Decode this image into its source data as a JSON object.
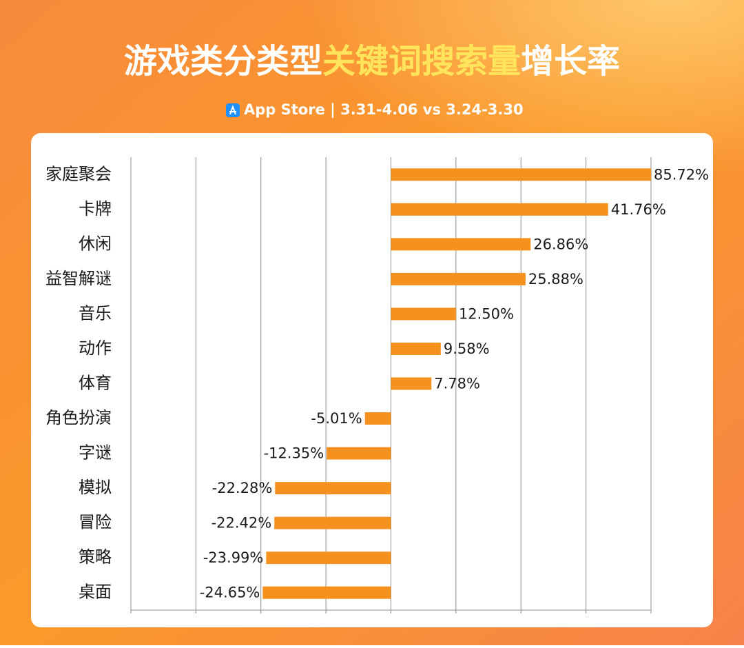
{
  "chart_data": {
    "type": "bar",
    "orientation": "horizontal",
    "title": [
      "游戏类分类型",
      "关键词搜索量",
      "增长率"
    ],
    "subtitle": "App Store | 3.31-4.06 vs 3.24-3.30",
    "categories": [
      "家庭聚会",
      "卡牌",
      "休闲",
      "益智解谜",
      "音乐",
      "动作",
      "体育",
      "角色扮演",
      "字谜",
      "模拟",
      "冒险",
      "策略",
      "桌面"
    ],
    "values": [
      85.72,
      41.76,
      26.86,
      25.88,
      12.5,
      9.58,
      7.78,
      -5.01,
      -12.35,
      -22.28,
      -22.42,
      -23.99,
      -24.65
    ],
    "value_labels": [
      "85.72%",
      "41.76%",
      "26.86%",
      "25.88%",
      "12.50%",
      "9.58%",
      "7.78%",
      "-5.01%",
      "-12.35%",
      "-22.28%",
      "-22.42%",
      "-23.99%",
      "-24.65%"
    ],
    "color": "#f5921f",
    "xlim": [
      -50,
      50
    ],
    "xticks": [
      -50,
      -37.5,
      -25,
      -12.5,
      0,
      12.5,
      25,
      37.5,
      50
    ],
    "grid": true
  }
}
